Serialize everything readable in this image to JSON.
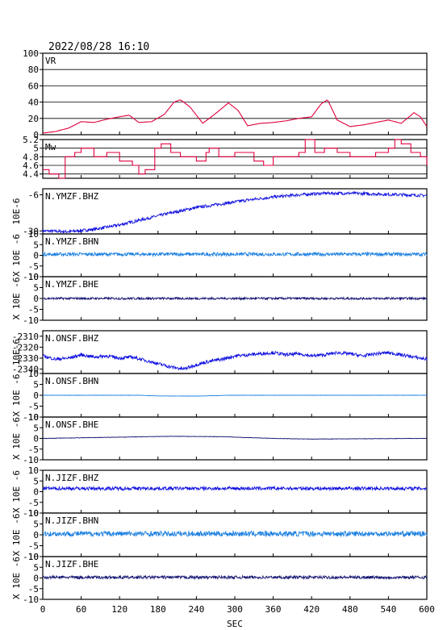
{
  "header": {
    "datetime": "2022/08/28 16:10"
  },
  "x_axis": {
    "label": "SEC",
    "ticks": [
      0,
      60,
      120,
      180,
      240,
      300,
      360,
      420,
      480,
      540,
      600
    ],
    "range": [
      0,
      600
    ]
  },
  "colors": {
    "vr_mw": "#e0003c",
    "bhz": "#1010e0",
    "bhn": "#1a7fe0",
    "bhe": "#101070",
    "grid": "#000000"
  },
  "chart_data": [
    {
      "type": "line",
      "panel": "vr",
      "label": "VR",
      "ylim": [
        0,
        100
      ],
      "yticks": [
        0,
        20,
        40,
        60,
        80,
        100
      ],
      "grid": true,
      "x": [
        0,
        20,
        40,
        60,
        80,
        100,
        120,
        135,
        150,
        170,
        190,
        205,
        215,
        230,
        250,
        270,
        290,
        305,
        320,
        340,
        360,
        380,
        400,
        420,
        435,
        445,
        460,
        480,
        500,
        520,
        540,
        560,
        580,
        590,
        600
      ],
      "y": [
        2,
        4,
        8,
        16,
        15,
        19,
        22,
        24,
        15,
        16,
        25,
        40,
        43,
        34,
        14,
        26,
        39,
        30,
        11,
        14,
        15,
        17,
        20,
        22,
        38,
        43,
        18,
        10,
        12,
        15,
        18,
        14,
        27,
        22,
        10
      ]
    },
    {
      "type": "line",
      "panel": "mw",
      "label": "Mw",
      "ylim": [
        4.3,
        5.2
      ],
      "yticks": [
        4.4,
        4.6,
        4.8,
        5.0,
        5.2
      ],
      "grid": true,
      "step": true,
      "x": [
        0,
        10,
        25,
        35,
        50,
        60,
        80,
        100,
        120,
        140,
        150,
        160,
        175,
        185,
        200,
        215,
        240,
        255,
        260,
        275,
        300,
        330,
        345,
        360,
        380,
        400,
        410,
        425,
        440,
        460,
        480,
        500,
        520,
        540,
        550,
        560,
        575,
        590,
        600
      ],
      "y": [
        4.5,
        4.4,
        4.3,
        4.8,
        4.9,
        5.0,
        4.8,
        4.9,
        4.7,
        4.6,
        4.4,
        4.5,
        5.0,
        5.1,
        4.9,
        4.8,
        4.7,
        4.9,
        5.0,
        4.8,
        4.9,
        4.7,
        4.6,
        4.8,
        4.8,
        4.9,
        5.2,
        4.9,
        5.0,
        4.9,
        4.8,
        4.8,
        4.9,
        5.0,
        5.2,
        5.1,
        4.9,
        4.8,
        4.6
      ]
    },
    {
      "type": "line",
      "panel": "trace",
      "label": "N.YMZF.BHZ",
      "color_key": "bhz",
      "ylim": [
        -32,
        -2
      ],
      "yticks": [
        -30,
        -6
      ],
      "ylabel": "10E-6",
      "x": [
        0,
        40,
        80,
        120,
        160,
        200,
        240,
        280,
        320,
        360,
        400,
        440,
        480,
        520,
        560,
        600
      ],
      "y": [
        -30,
        -30.5,
        -29,
        -26,
        -22,
        -18,
        -14.5,
        -12,
        -9.5,
        -7.5,
        -6,
        -5,
        -5,
        -5.5,
        -6,
        -6.5
      ],
      "noise": 1.0
    },
    {
      "type": "line",
      "panel": "trace",
      "label": "N.YMZF.BHN",
      "color_key": "bhn",
      "ylim": [
        -10,
        10
      ],
      "yticks": [
        -10,
        -5,
        0,
        5,
        10
      ],
      "ylabel": "X 10E -6",
      "x": [
        0,
        600
      ],
      "y": [
        0.5,
        0.5
      ],
      "noise": 0.8
    },
    {
      "type": "line",
      "panel": "trace",
      "label": "N.YMZF.BHE",
      "color_key": "bhe",
      "ylim": [
        -10,
        10
      ],
      "yticks": [
        -10,
        -5,
        0,
        5,
        10
      ],
      "ylabel": "X 10E -6",
      "x": [
        0,
        600
      ],
      "y": [
        0,
        0
      ],
      "noise": 0.5
    },
    {
      "type": "line",
      "panel": "trace",
      "label": "N.ONSF.BHZ",
      "color_key": "bhz",
      "ylim": [
        -2344,
        -2305
      ],
      "yticks": [
        -2340,
        -2330,
        -2320,
        -2310
      ],
      "ylabel": "10E-6",
      "x": [
        0,
        20,
        40,
        60,
        80,
        100,
        120,
        140,
        160,
        180,
        200,
        220,
        240,
        260,
        280,
        300,
        320,
        340,
        360,
        380,
        400,
        420,
        440,
        460,
        480,
        500,
        520,
        540,
        560,
        580,
        600
      ],
      "y": [
        -2328,
        -2331,
        -2330,
        -2327,
        -2329,
        -2328,
        -2330,
        -2329,
        -2332,
        -2335,
        -2338,
        -2340,
        -2336,
        -2333,
        -2331,
        -2328,
        -2327,
        -2326,
        -2325,
        -2327,
        -2326,
        -2328,
        -2327,
        -2325,
        -2326,
        -2328,
        -2326,
        -2325,
        -2327,
        -2329,
        -2331
      ],
      "noise": 1.5
    },
    {
      "type": "line",
      "panel": "trace",
      "label": "N.ONSF.BHN",
      "color_key": "bhn",
      "ylim": [
        -10,
        10
      ],
      "yticks": [
        -10,
        -5,
        0,
        5,
        10
      ],
      "ylabel": "X 10E -6",
      "x": [
        0,
        150,
        180,
        240,
        290,
        600
      ],
      "y": [
        0,
        0,
        -0.3,
        -0.4,
        0,
        0
      ],
      "noise": 0.05
    },
    {
      "type": "line",
      "panel": "trace",
      "label": "N.ONSF.BHE",
      "color_key": "bhe",
      "ylim": [
        -10,
        10
      ],
      "yticks": [
        -10,
        -5,
        0,
        5,
        10
      ],
      "ylabel": "X 10E -6",
      "x": [
        0,
        100,
        200,
        280,
        360,
        420,
        480,
        600
      ],
      "y": [
        0,
        0.5,
        1,
        0.8,
        0,
        -0.3,
        -0.2,
        0
      ],
      "noise": 0.1
    },
    {
      "type": "line",
      "panel": "trace",
      "label": "N.JIZF.BHZ",
      "color_key": "bhz",
      "ylim": [
        -10,
        10
      ],
      "yticks": [
        -10,
        -5,
        0,
        5,
        10
      ],
      "ylabel": "X 10E -6",
      "x": [
        0,
        600
      ],
      "y": [
        1.5,
        1.5
      ],
      "noise": 0.8
    },
    {
      "type": "line",
      "panel": "trace",
      "label": "N.JIZF.BHN",
      "color_key": "bhn",
      "ylim": [
        -10,
        10
      ],
      "yticks": [
        -10,
        -5,
        0,
        5,
        10
      ],
      "ylabel": "X 10E -6",
      "x": [
        0,
        600
      ],
      "y": [
        0.5,
        0.5
      ],
      "noise": 1.2
    },
    {
      "type": "line",
      "panel": "trace",
      "label": "N.JIZF.BHE",
      "color_key": "bhe",
      "ylim": [
        -10,
        10
      ],
      "yticks": [
        -10,
        -5,
        0,
        5,
        10
      ],
      "ylabel": "X 10E -6",
      "x": [
        0,
        600
      ],
      "y": [
        0.3,
        0.3
      ],
      "noise": 0.7
    }
  ]
}
